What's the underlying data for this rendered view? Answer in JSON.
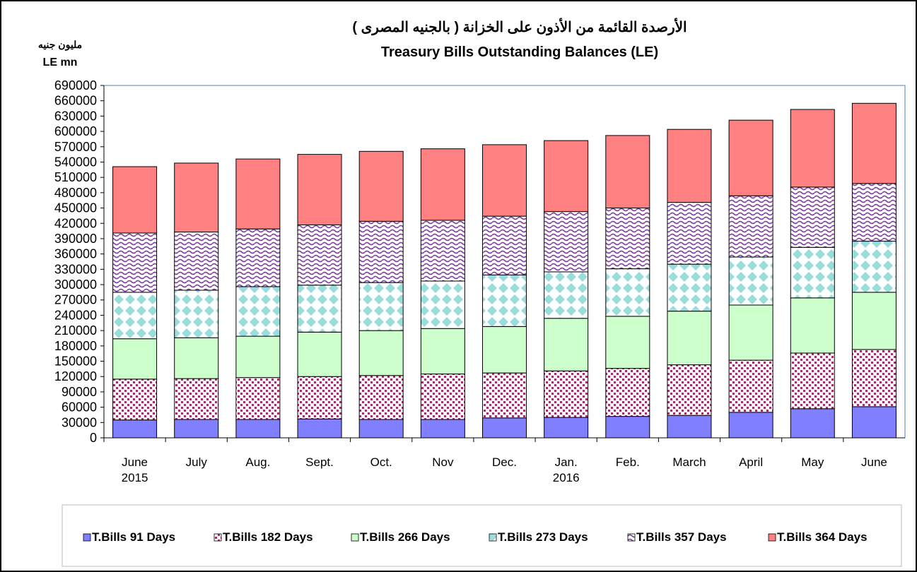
{
  "chart_data": {
    "type": "stacked_bar",
    "title_ar": "الأرصدة القائمة من الأذون على الخزانة ( بالجنيه المصرى )",
    "title": "Treasury Bills Outstanding Balances (LE)",
    "y_label_ar": "مليون جنيه",
    "y_label": "LE mn",
    "categories": [
      "June 2015",
      "July",
      "Aug.",
      "Sept.",
      "Oct.",
      "Nov",
      "Dec.",
      "Jan. 2016",
      "Feb.",
      "March",
      "April",
      "May",
      "June"
    ],
    "series": [
      {
        "name": "T.Bills 91 Days",
        "color": "#7f7fff",
        "values": [
          35000,
          36000,
          36000,
          37000,
          36000,
          36000,
          39000,
          40000,
          42000,
          44000,
          50000,
          57000,
          61000
        ]
      },
      {
        "name": "T.Bills 182 Days",
        "color": "#993366",
        "values": [
          80000,
          80000,
          82000,
          83000,
          86000,
          89000,
          88000,
          91000,
          94000,
          99000,
          102000,
          109000,
          112000
        ]
      },
      {
        "name": "T.Bills 266 Days",
        "color": "#ccffcc",
        "values": [
          79000,
          80000,
          81000,
          87000,
          88000,
          89000,
          91000,
          103000,
          102000,
          105000,
          108000,
          108000,
          112000
        ]
      },
      {
        "name": "T.Bills 273 Days",
        "color": "#99dddd",
        "values": [
          91000,
          93000,
          97000,
          92000,
          94000,
          93000,
          101000,
          91000,
          93000,
          92000,
          94000,
          99000,
          100000
        ]
      },
      {
        "name": "T.Bills 357 Days",
        "color": "#7f3f9f",
        "values": [
          116000,
          114000,
          113000,
          118000,
          120000,
          119000,
          115000,
          118000,
          119000,
          121000,
          120000,
          118000,
          113000
        ]
      },
      {
        "name": "T.Bills 364 Days",
        "color": "#ff8080",
        "values": [
          130000,
          135000,
          137000,
          138000,
          137000,
          140000,
          140000,
          139000,
          142000,
          143000,
          148000,
          152000,
          157000
        ]
      }
    ],
    "patterns": [
      "solid",
      "dots",
      "solid",
      "diamonds",
      "waves",
      "solid"
    ],
    "ylim": [
      0,
      690000
    ],
    "yticks": [
      0,
      30000,
      60000,
      90000,
      120000,
      150000,
      180000,
      210000,
      240000,
      270000,
      300000,
      330000,
      360000,
      390000,
      420000,
      450000,
      480000,
      510000,
      540000,
      570000,
      600000,
      630000,
      660000,
      690000
    ],
    "legend": "bottom"
  }
}
